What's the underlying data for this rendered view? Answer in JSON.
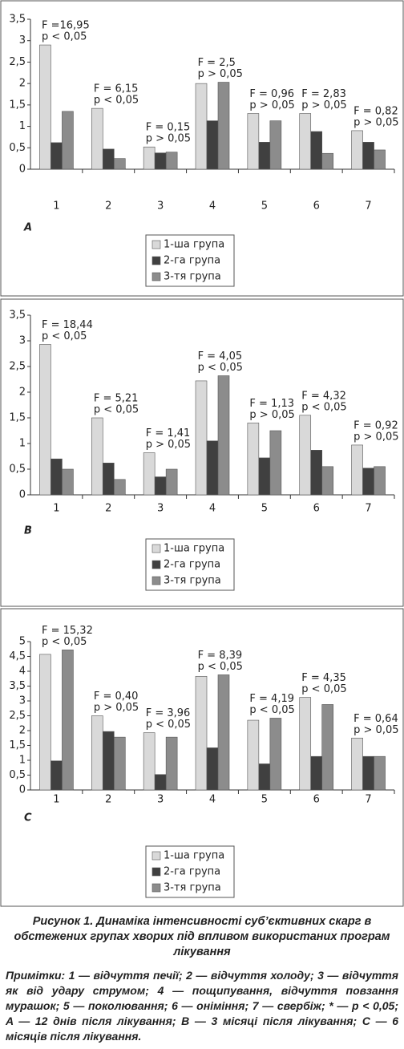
{
  "chart_data": [
    {
      "type": "bar",
      "panel_label": "A",
      "categories": [
        "1",
        "2",
        "3",
        "4",
        "5",
        "6",
        "7"
      ],
      "series": [
        {
          "name": "1-ша група",
          "color": "#d9d9d9",
          "values": [
            2.9,
            1.42,
            0.52,
            2.0,
            1.3,
            1.3,
            0.9
          ]
        },
        {
          "name": "2-га група",
          "color": "#404040",
          "values": [
            0.62,
            0.47,
            0.38,
            1.13,
            0.63,
            0.88,
            0.63
          ]
        },
        {
          "name": "3-тя група",
          "color": "#8c8c8c",
          "values": [
            1.35,
            0.25,
            0.4,
            2.03,
            1.13,
            0.37,
            0.45
          ]
        }
      ],
      "ylim": [
        0,
        3.5
      ],
      "yticks": [
        0,
        {
          "value": 0.5,
          "label": "0,5"
        },
        1,
        {
          "value": 1.5,
          "label": "1,5"
        },
        2,
        {
          "value": 2.5,
          "label": "2,5"
        },
        3,
        {
          "value": 3.5,
          "label": "3,5"
        }
      ],
      "grid": false,
      "annotations": [
        {
          "f": "F =16,95",
          "p": "p < 0,05"
        },
        {
          "f": "F = 6,15",
          "p": "p < 0,05"
        },
        {
          "f": "F = 0,15",
          "p": "p > 0,05"
        },
        {
          "f": "F = 2,5",
          "p": "p > 0,05"
        },
        {
          "f": "F = 0,96",
          "p": "p > 0,05"
        },
        {
          "f": "F = 2,83",
          "p": "p > 0,05"
        },
        {
          "f": "F = 0,82",
          "p": "p > 0,05"
        }
      ]
    },
    {
      "type": "bar",
      "panel_label": "B",
      "categories": [
        "1",
        "2",
        "3",
        "4",
        "5",
        "6",
        "7"
      ],
      "series": [
        {
          "name": "1-ша група",
          "color": "#d9d9d9",
          "values": [
            2.93,
            1.5,
            0.82,
            2.22,
            1.4,
            1.55,
            0.97
          ]
        },
        {
          "name": "2-га група",
          "color": "#404040",
          "values": [
            0.7,
            0.62,
            0.35,
            1.05,
            0.72,
            0.87,
            0.52
          ]
        },
        {
          "name": "3-тя група",
          "color": "#8c8c8c",
          "values": [
            0.5,
            0.3,
            0.5,
            2.32,
            1.25,
            0.55,
            0.55
          ]
        }
      ],
      "ylim": [
        0,
        3.5
      ],
      "yticks": [
        0,
        {
          "value": 0.5,
          "label": "0,5"
        },
        1,
        {
          "value": 1.5,
          "label": "1,5"
        },
        2,
        {
          "value": 2.5,
          "label": "2,5"
        },
        3,
        {
          "value": 3.5,
          "label": "3,5"
        }
      ],
      "grid": false,
      "annotations": [
        {
          "f": "F = 18,44",
          "p": "p < 0,05"
        },
        {
          "f": "F = 5,21",
          "p": "p < 0,05"
        },
        {
          "f": "F = 1,41",
          "p": "p > 0,05"
        },
        {
          "f": "F = 4,05",
          "p": "p < 0,05"
        },
        {
          "f": "F = 1,13",
          "p": "p > 0,05"
        },
        {
          "f": "F = 4,32",
          "p": "p < 0,05"
        },
        {
          "f": "F = 0,92",
          "p": "p > 0,05"
        }
      ]
    },
    {
      "type": "bar",
      "panel_label": "C",
      "categories": [
        "1",
        "2",
        "3",
        "4",
        "5",
        "6",
        "7"
      ],
      "series": [
        {
          "name": "1-ша група",
          "color": "#d9d9d9",
          "values": [
            4.57,
            2.5,
            1.93,
            3.83,
            2.35,
            3.12,
            1.75
          ]
        },
        {
          "name": "2-га група",
          "color": "#404040",
          "values": [
            0.98,
            1.97,
            0.52,
            1.42,
            0.88,
            1.13,
            1.13
          ]
        },
        {
          "name": "3-тя група",
          "color": "#8c8c8c",
          "values": [
            4.72,
            1.78,
            1.78,
            3.88,
            2.42,
            2.88,
            1.13
          ]
        }
      ],
      "ylim": [
        0,
        5
      ],
      "yticks": [
        0,
        {
          "value": 0.5,
          "label": "0,5"
        },
        1,
        {
          "value": 1.5,
          "label": "1,5"
        },
        2,
        {
          "value": 2.5,
          "label": "2,5"
        },
        3,
        {
          "value": 3.5,
          "label": "3,5"
        },
        4,
        {
          "value": 4.5,
          "label": "4,5"
        },
        5
      ],
      "grid": false,
      "annotations": [
        {
          "f": "F = 15,32",
          "p": "p < 0,05"
        },
        {
          "f": "F = 0,40",
          "p": "p > 0,05"
        },
        {
          "f": "F = 3,96",
          "p": "p < 0,05"
        },
        {
          "f": "F = 8,39",
          "p": "p < 0,05"
        },
        {
          "f": "F = 4,19",
          "p": "p < 0,05"
        },
        {
          "f": "F = 4,35",
          "p": "p < 0,05"
        },
        {
          "f": "F = 0,64",
          "p": "p  > 0,05"
        }
      ]
    }
  ],
  "caption": "Рисунок 1. Динаміка інтенсивності суб’єктивних скарг в обстежених групах хворих під впливом використаних програм лікування",
  "notes": "Примітки: 1 — відчуття печії; 2 — відчуття холоду; 3 — відчуття як від удару струмом; 4 — пощипування, відчуття повзання мурашок; 5 — поколювання; 6 — оніміння; 7 — свербіж; * — p < 0,05; A — 12 днів після лікування; B — 3 місяці після лікування; C — 6 місяців після лікування."
}
